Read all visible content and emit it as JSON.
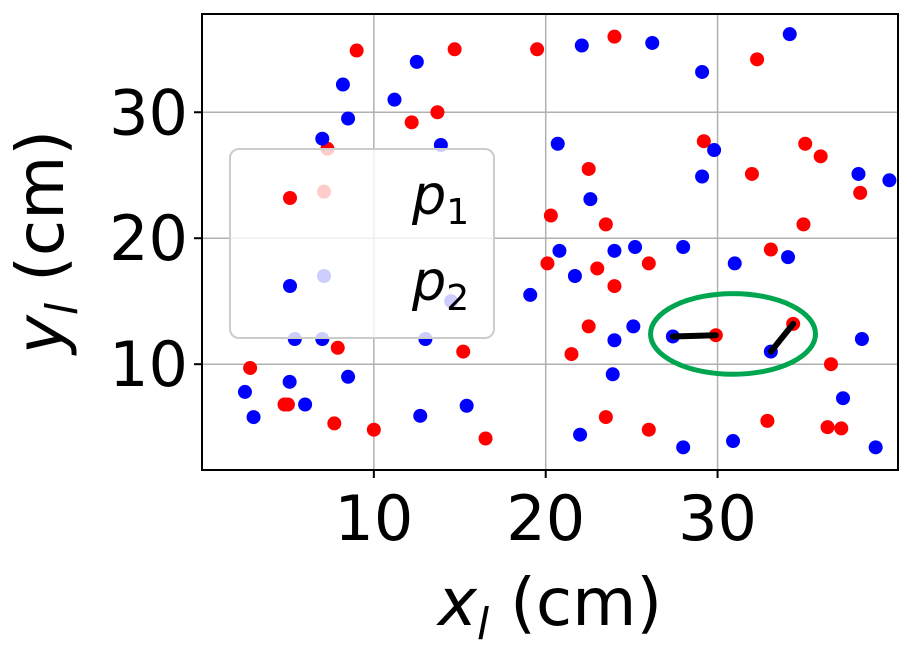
{
  "chart_data": {
    "type": "scatter",
    "xlim": [
      0,
      40.5
    ],
    "ylim": [
      1.6,
      37.8
    ],
    "xticks": [
      "10",
      "20",
      "30"
    ],
    "yticks": [
      "10",
      "20",
      "30"
    ],
    "xlabel": {
      "var": "x",
      "sub": "l",
      "unit": " (cm)"
    },
    "ylabel": {
      "var": "y",
      "sub": "l",
      "unit": " (cm)"
    },
    "grid": true,
    "legend": {
      "position": "center-left",
      "entries": [
        {
          "var": "p",
          "sub": "1",
          "color": "#ff0000"
        },
        {
          "var": "p",
          "sub": "2",
          "color": "#0000ff"
        }
      ]
    },
    "colors": {
      "p1": "#ff0000",
      "p2": "#0000ff",
      "ellipse": "#00a550",
      "link": "#000000"
    },
    "series": [
      {
        "key": "p1",
        "color": "#ff0000",
        "points": [
          [
            9.0,
            34.9
          ],
          [
            14.7,
            35.0
          ],
          [
            19.5,
            35.0
          ],
          [
            24.0,
            36.0
          ],
          [
            32.3,
            34.2
          ],
          [
            13.7,
            30.0
          ],
          [
            12.2,
            29.2
          ],
          [
            29.2,
            27.7
          ],
          [
            35.1,
            27.5
          ],
          [
            36.0,
            26.5
          ],
          [
            7.3,
            27.1
          ],
          [
            22.5,
            25.5
          ],
          [
            32.0,
            25.1
          ],
          [
            7.1,
            23.7
          ],
          [
            38.3,
            23.6
          ],
          [
            20.3,
            21.8
          ],
          [
            23.5,
            21.1
          ],
          [
            35.0,
            21.1
          ],
          [
            33.1,
            19.1
          ],
          [
            20.1,
            18.0
          ],
          [
            26.0,
            18.0
          ],
          [
            23.0,
            17.6
          ],
          [
            24.0,
            16.2
          ],
          [
            22.5,
            13.0
          ],
          [
            29.9,
            12.3
          ],
          [
            34.4,
            13.2
          ],
          [
            7.9,
            11.3
          ],
          [
            15.2,
            11.0
          ],
          [
            21.5,
            10.8
          ],
          [
            36.6,
            10.0
          ],
          [
            2.8,
            9.7
          ],
          [
            4.8,
            6.8
          ],
          [
            5.0,
            6.8
          ],
          [
            7.7,
            5.3
          ],
          [
            10.0,
            4.8
          ],
          [
            23.5,
            5.8
          ],
          [
            26.0,
            4.8
          ],
          [
            32.9,
            5.5
          ],
          [
            36.4,
            5.0
          ],
          [
            37.2,
            4.9
          ],
          [
            16.5,
            4.1
          ]
        ]
      },
      {
        "key": "p2",
        "color": "#0000ff",
        "points": [
          [
            22.1,
            35.3
          ],
          [
            26.2,
            35.5
          ],
          [
            34.2,
            36.2
          ],
          [
            12.5,
            34.0
          ],
          [
            29.1,
            33.2
          ],
          [
            8.2,
            32.2
          ],
          [
            11.2,
            31.0
          ],
          [
            8.5,
            29.5
          ],
          [
            7.0,
            27.9
          ],
          [
            13.9,
            27.4
          ],
          [
            20.7,
            27.5
          ],
          [
            29.8,
            27.0
          ],
          [
            29.1,
            24.9
          ],
          [
            38.2,
            25.1
          ],
          [
            40.0,
            24.6
          ],
          [
            22.6,
            23.1
          ],
          [
            7.1,
            17.0
          ],
          [
            20.8,
            19.0
          ],
          [
            24.0,
            19.0
          ],
          [
            25.2,
            19.3
          ],
          [
            28.0,
            19.3
          ],
          [
            34.1,
            18.5
          ],
          [
            31.0,
            18.0
          ],
          [
            21.7,
            17.0
          ],
          [
            19.1,
            15.5
          ],
          [
            14.5,
            15.0
          ],
          [
            25.1,
            13.0
          ],
          [
            27.4,
            12.2
          ],
          [
            24.0,
            11.9
          ],
          [
            33.1,
            11.0
          ],
          [
            38.4,
            12.0
          ],
          [
            5.4,
            12.0
          ],
          [
            7.0,
            12.0
          ],
          [
            13.0,
            12.0
          ],
          [
            8.5,
            9.0
          ],
          [
            23.9,
            9.2
          ],
          [
            2.5,
            7.8
          ],
          [
            5.1,
            8.6
          ],
          [
            6.0,
            6.8
          ],
          [
            3.0,
            5.8
          ],
          [
            12.7,
            5.9
          ],
          [
            15.4,
            6.7
          ],
          [
            22.0,
            4.4
          ],
          [
            28.0,
            3.4
          ],
          [
            30.9,
            3.9
          ],
          [
            37.3,
            7.3
          ],
          [
            39.2,
            3.4
          ]
        ]
      }
    ],
    "links": [
      [
        [
          27.4,
          12.2
        ],
        [
          29.9,
          12.3
        ]
      ],
      [
        [
          33.1,
          11.0
        ],
        [
          34.4,
          13.2
        ]
      ]
    ],
    "highlight_ellipse": {
      "center": [
        30.9,
        12.4
      ],
      "radii": [
        4.8,
        3.2
      ]
    }
  }
}
